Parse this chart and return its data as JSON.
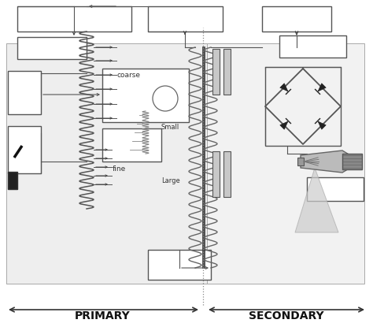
{
  "bg_color": "#ffffff",
  "lc": "#555555",
  "lc_dark": "#333333",
  "primary_label": "PRIMARY",
  "secondary_label": "SECONDARY",
  "coarse_label": "coarse",
  "fine_label": "fine",
  "small_label": "Small",
  "large_label": "Large",
  "figsize": [
    4.74,
    4.15
  ],
  "dpi": 100,
  "xlim": [
    0,
    474
  ],
  "ylim": [
    0,
    415
  ]
}
